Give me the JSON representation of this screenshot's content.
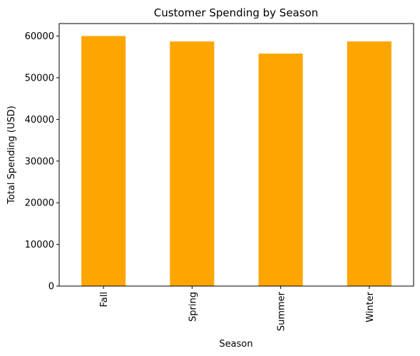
{
  "chart_data": {
    "type": "bar",
    "title": "Customer Spending by Season",
    "xlabel": "Season",
    "ylabel": "Total Spending (USD)",
    "categories": [
      "Fall",
      "Spring",
      "Summer",
      "Winter"
    ],
    "values": [
      60000,
      58700,
      55800,
      58700
    ],
    "ylim": [
      0,
      63000
    ],
    "yticks": [
      0,
      10000,
      20000,
      30000,
      40000,
      50000,
      60000
    ],
    "ytick_labels": [
      "0",
      "10000",
      "20000",
      "30000",
      "40000",
      "50000",
      "60000"
    ],
    "bar_color": "#FFA500",
    "grid": false,
    "x_tick_rotation": "vertical"
  }
}
